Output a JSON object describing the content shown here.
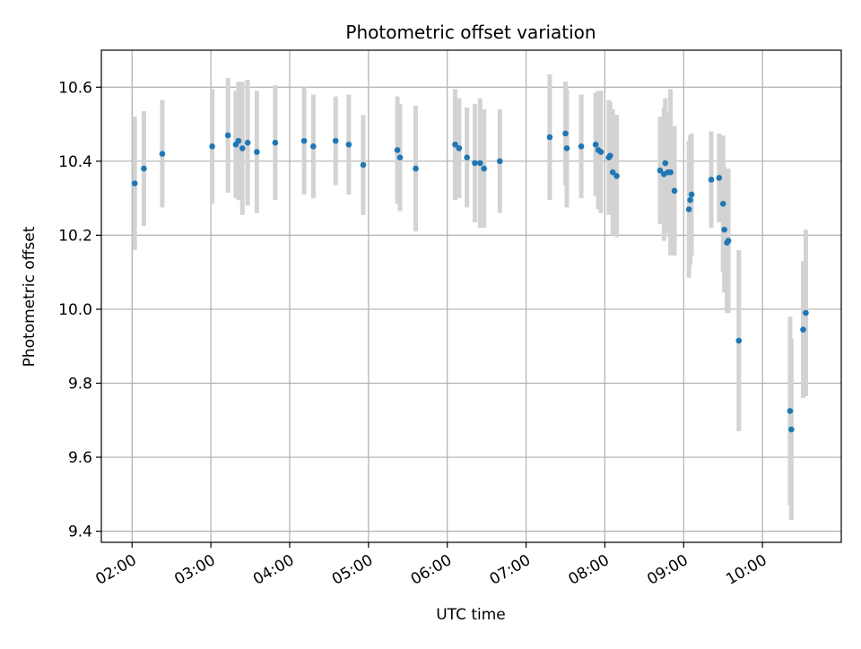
{
  "chart_data": {
    "type": "scatter",
    "title": "Photometric offset variation",
    "xlabel": "UTC time",
    "ylabel": "Photometric offset",
    "x_tick_labels": [
      "02:00",
      "03:00",
      "04:00",
      "05:00",
      "06:00",
      "07:00",
      "08:00",
      "09:00",
      "10:00"
    ],
    "x_tick_hours": [
      2,
      3,
      4,
      5,
      6,
      7,
      8,
      9,
      10
    ],
    "x_lim_hours": [
      1.61,
      11.0
    ],
    "y_ticks": [
      9.4,
      9.6,
      9.8,
      10.0,
      10.2,
      10.4,
      10.6
    ],
    "y_tick_labels": [
      "9.4",
      "9.6",
      "9.8",
      "10.0",
      "10.2",
      "10.4",
      "10.6"
    ],
    "ylim": [
      9.37,
      10.7
    ],
    "grid": true,
    "colors": {
      "point": "#1f77b4",
      "errorbar": "#d3d3d3",
      "grid": "#b0b0b0"
    },
    "series": [
      {
        "x": [
          "02:02",
          "02:09",
          "02:23",
          "03:01",
          "03:13",
          "03:19",
          "03:21",
          "03:24",
          "03:28",
          "03:35",
          "03:49",
          "04:11",
          "04:18",
          "04:35",
          "04:45",
          "04:56",
          "05:22",
          "05:24",
          "05:36",
          "06:06",
          "06:09",
          "06:15",
          "06:21",
          "06:25",
          "06:28",
          "06:40",
          "07:18",
          "07:30",
          "07:31",
          "07:42",
          "07:53",
          "07:55",
          "07:57",
          "08:03",
          "08:04",
          "08:06",
          "08:09",
          "08:42",
          "08:45",
          "08:46",
          "08:48",
          "08:50",
          "08:53",
          "09:04",
          "09:05",
          "09:06",
          "09:21",
          "09:27",
          "09:30",
          "09:31",
          "09:33",
          "09:34",
          "09:42",
          "10:21",
          "10:22",
          "10:31",
          "10:33"
        ],
        "y": [
          10.34,
          10.38,
          10.42,
          10.44,
          10.47,
          10.445,
          10.455,
          10.435,
          10.45,
          10.425,
          10.45,
          10.455,
          10.44,
          10.455,
          10.445,
          10.39,
          10.43,
          10.41,
          10.38,
          10.445,
          10.435,
          10.41,
          10.395,
          10.395,
          10.38,
          10.4,
          10.465,
          10.475,
          10.435,
          10.44,
          10.445,
          10.43,
          10.425,
          10.41,
          10.415,
          10.37,
          10.36,
          10.375,
          10.365,
          10.395,
          10.37,
          10.37,
          10.32,
          10.27,
          10.295,
          10.31,
          10.35,
          10.355,
          10.285,
          10.215,
          10.18,
          10.185,
          9.915,
          9.725,
          9.675,
          9.945,
          9.99
        ],
        "err": [
          0.18,
          0.155,
          0.145,
          0.155,
          0.155,
          0.145,
          0.16,
          0.18,
          0.17,
          0.165,
          0.155,
          0.145,
          0.14,
          0.12,
          0.135,
          0.135,
          0.145,
          0.145,
          0.17,
          0.15,
          0.135,
          0.135,
          0.16,
          0.175,
          0.16,
          0.14,
          0.17,
          0.14,
          0.16,
          0.14,
          0.14,
          0.16,
          0.165,
          0.155,
          0.145,
          0.17,
          0.165,
          0.145,
          0.18,
          0.175,
          0.165,
          0.225,
          0.175,
          0.185,
          0.175,
          0.165,
          0.13,
          0.12,
          0.185,
          0.17,
          0.19,
          0.195,
          0.245,
          0.255,
          0.245,
          0.185,
          0.225
        ]
      }
    ]
  }
}
